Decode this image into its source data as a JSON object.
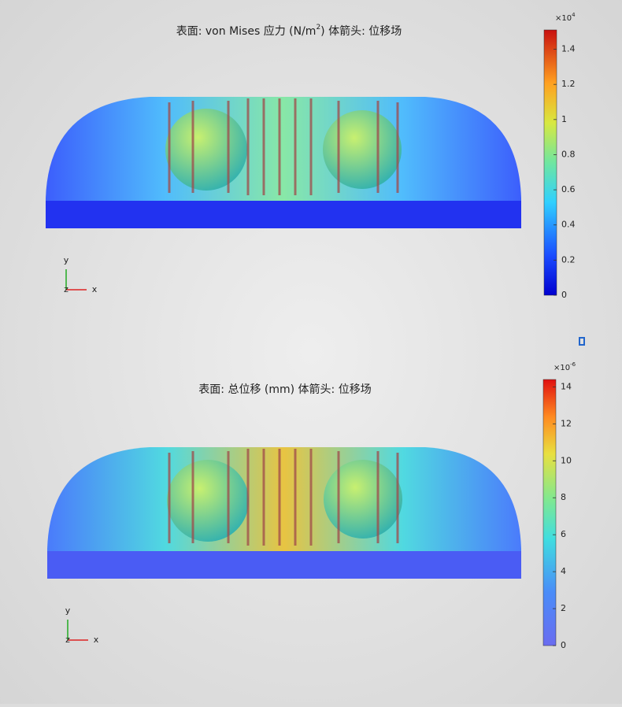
{
  "plots": [
    {
      "title": {
        "main": "表面: von Mises 应力 (N/m",
        "sup": "2",
        "tail": ")  体箭头: 位移场"
      },
      "scale": {
        "base": "×10",
        "exp": "4"
      },
      "clim": [
        0,
        1.51
      ],
      "ticks": [
        0,
        0.2,
        0.4,
        0.6,
        0.8,
        1,
        1.2,
        1.4
      ],
      "axes": {
        "y": "y",
        "x": "x",
        "z": "z"
      }
    },
    {
      "title": {
        "main": "表面: 总位移 (mm)  体箭头: 位移场"
      },
      "scale": {
        "base": "×10",
        "exp": "-6"
      },
      "clim": [
        0,
        14.4
      ],
      "ticks": [
        0,
        2,
        4,
        6,
        8,
        10,
        12,
        14
      ],
      "axes": {
        "y": "y",
        "x": "x",
        "z": "z"
      }
    }
  ]
}
